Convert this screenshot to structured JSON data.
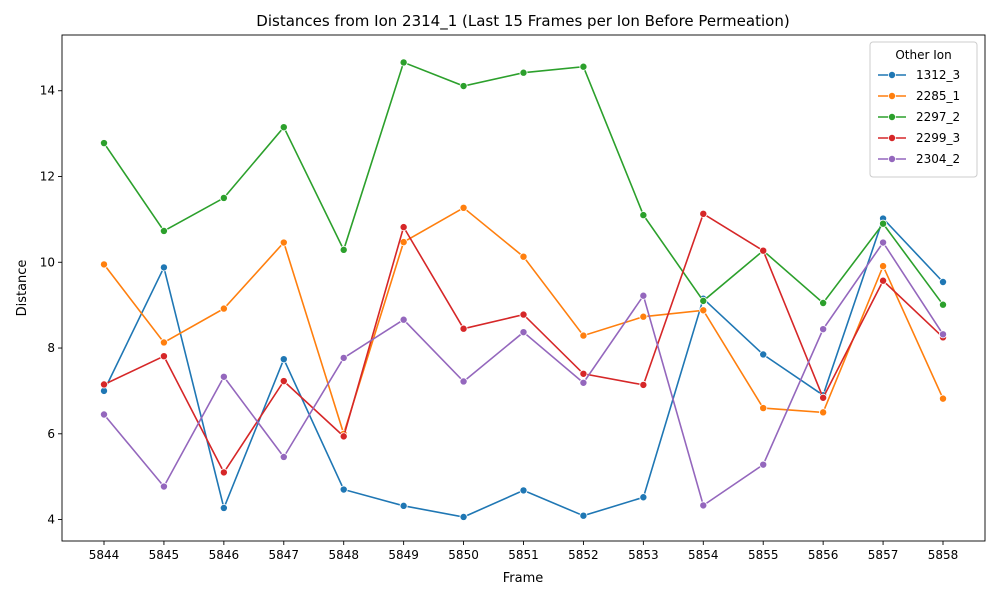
{
  "chart_data": {
    "type": "line",
    "title": "Distances from Ion 2314_1 (Last 15 Frames per Ion Before Permeation)",
    "xlabel": "Frame",
    "ylabel": "Distance",
    "x": [
      5844,
      5845,
      5846,
      5847,
      5848,
      5849,
      5850,
      5851,
      5852,
      5853,
      5854,
      5855,
      5856,
      5857,
      5858
    ],
    "xticks": [
      "5844",
      "5845",
      "5846",
      "5847",
      "5848",
      "5849",
      "5850",
      "5851",
      "5852",
      "5853",
      "5854",
      "5855",
      "5856",
      "5857",
      "5858"
    ],
    "yticks": [
      4,
      6,
      8,
      10,
      12,
      14
    ],
    "ytick_labels": [
      "4",
      "6",
      "8",
      "10",
      "12",
      "14"
    ],
    "ylim": [
      3.5,
      15.3
    ],
    "grid": false,
    "legend": {
      "title": "Other Ion",
      "placement": "top-right"
    },
    "series": [
      {
        "name": "1312_3",
        "color": "#1f77b4",
        "values": [
          7.0,
          9.88,
          4.27,
          7.74,
          4.7,
          4.32,
          4.06,
          4.68,
          4.09,
          4.52,
          9.15,
          7.85,
          6.9,
          11.02,
          9.54
        ]
      },
      {
        "name": "2285_1",
        "color": "#ff7f0e",
        "values": [
          9.95,
          8.13,
          8.92,
          10.46,
          6.0,
          10.47,
          11.27,
          10.13,
          8.29,
          8.73,
          8.88,
          6.6,
          6.5,
          9.91,
          6.82
        ]
      },
      {
        "name": "2297_2",
        "color": "#2ca02c",
        "values": [
          12.78,
          10.73,
          11.5,
          13.15,
          10.29,
          14.66,
          14.11,
          14.42,
          14.56,
          11.1,
          9.1,
          10.27,
          9.05,
          10.9,
          9.01
        ]
      },
      {
        "name": "2299_3",
        "color": "#d62728",
        "values": [
          7.15,
          7.81,
          5.1,
          7.23,
          5.94,
          10.82,
          8.45,
          8.78,
          7.4,
          7.14,
          11.13,
          10.27,
          6.84,
          9.57,
          8.25
        ]
      },
      {
        "name": "2304_2",
        "color": "#9467bd",
        "values": [
          6.45,
          4.77,
          7.33,
          5.46,
          7.77,
          8.66,
          7.22,
          8.37,
          7.19,
          9.22,
          4.33,
          5.28,
          8.44,
          10.46,
          8.32
        ]
      }
    ]
  }
}
